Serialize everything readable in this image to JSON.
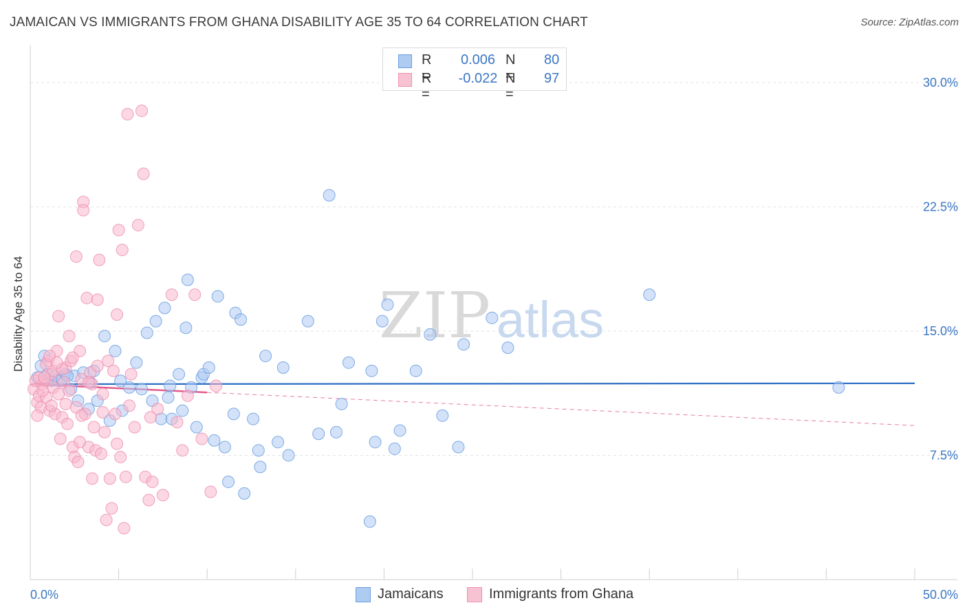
{
  "title": "JAMAICAN VS IMMIGRANTS FROM GHANA DISABILITY AGE 35 TO 64 CORRELATION CHART",
  "source": "Source: ZipAtlas.com",
  "watermark": {
    "zip": "ZIP",
    "atlas": "atlas"
  },
  "legend_top": [
    {
      "r_label": "R =",
      "r_value": "0.006",
      "n_label": "N =",
      "n_value": "80",
      "color": "#aecbf2"
    },
    {
      "r_label": "R =",
      "r_value": "-0.022",
      "n_label": "N =",
      "n_value": "97",
      "color": "#f7b8cc"
    }
  ],
  "legend_bottom": [
    {
      "label": "Jamaicans",
      "color": "#aecbf2"
    },
    {
      "label": "Immigrants from Ghana",
      "color": "#f7b8cc"
    }
  ],
  "chart_data": {
    "type": "scatter",
    "title": "JAMAICAN VS IMMIGRANTS FROM GHANA DISABILITY AGE 35 TO 64 CORRELATION CHART",
    "xlabel": "",
    "ylabel": "Disability Age 35 to 64",
    "xlim": [
      0,
      50
    ],
    "ylim": [
      0,
      32
    ],
    "x_tick_labels": [
      "0.0%",
      "50.0%"
    ],
    "y_ticks": [
      7.5,
      15.0,
      22.5,
      30.0
    ],
    "y_tick_labels": [
      "7.5%",
      "15.0%",
      "22.5%",
      "30.0%"
    ],
    "grid": true,
    "series": [
      {
        "name": "Jamaicans",
        "color": "#6a9ee0",
        "fill": "#aecbf2",
        "trend": {
          "x": [
            0,
            50
          ],
          "y": [
            11.8,
            11.85
          ],
          "color": "#2b6cc4",
          "style": "solid"
        },
        "points": [
          [
            0.4,
            12.2
          ],
          [
            0.6,
            12.9
          ],
          [
            0.8,
            13.5
          ],
          [
            1.0,
            12.4
          ],
          [
            1.2,
            12.0
          ],
          [
            1.4,
            12.3
          ],
          [
            1.6,
            12.0
          ],
          [
            1.8,
            12.1
          ],
          [
            2.0,
            12.4
          ],
          [
            2.3,
            11.5
          ],
          [
            2.5,
            12.3
          ],
          [
            2.7,
            10.8
          ],
          [
            3.0,
            12.5
          ],
          [
            3.3,
            10.3
          ],
          [
            3.6,
            12.6
          ],
          [
            3.8,
            10.8
          ],
          [
            4.2,
            14.7
          ],
          [
            4.5,
            9.6
          ],
          [
            4.8,
            13.8
          ],
          [
            5.2,
            10.2
          ],
          [
            5.6,
            11.6
          ],
          [
            6.0,
            13.1
          ],
          [
            6.3,
            11.5
          ],
          [
            6.6,
            14.9
          ],
          [
            6.9,
            10.8
          ],
          [
            7.1,
            15.6
          ],
          [
            7.4,
            9.7
          ],
          [
            7.6,
            16.4
          ],
          [
            7.8,
            11.0
          ],
          [
            8.0,
            9.7
          ],
          [
            8.4,
            12.4
          ],
          [
            8.6,
            10.2
          ],
          [
            8.8,
            15.2
          ],
          [
            8.9,
            18.1
          ],
          [
            9.1,
            11.6
          ],
          [
            9.4,
            9.2
          ],
          [
            9.7,
            12.2
          ],
          [
            9.8,
            12.4
          ],
          [
            10.1,
            12.8
          ],
          [
            10.4,
            8.4
          ],
          [
            10.6,
            17.1
          ],
          [
            11.0,
            8.0
          ],
          [
            11.2,
            5.9
          ],
          [
            11.5,
            10.0
          ],
          [
            11.6,
            16.1
          ],
          [
            11.9,
            15.7
          ],
          [
            12.1,
            5.2
          ],
          [
            12.6,
            9.7
          ],
          [
            12.9,
            7.8
          ],
          [
            13.0,
            6.8
          ],
          [
            13.3,
            13.5
          ],
          [
            14.0,
            8.3
          ],
          [
            14.3,
            12.8
          ],
          [
            14.6,
            7.5
          ],
          [
            15.7,
            15.6
          ],
          [
            16.3,
            8.8
          ],
          [
            16.9,
            23.2
          ],
          [
            17.3,
            8.9
          ],
          [
            17.6,
            10.6
          ],
          [
            18.0,
            13.1
          ],
          [
            19.2,
            3.5
          ],
          [
            19.3,
            12.6
          ],
          [
            19.5,
            8.3
          ],
          [
            19.9,
            15.6
          ],
          [
            20.2,
            16.6
          ],
          [
            20.6,
            7.9
          ],
          [
            20.9,
            9.0
          ],
          [
            21.8,
            12.6
          ],
          [
            22.6,
            14.8
          ],
          [
            23.3,
            9.9
          ],
          [
            24.2,
            8.0
          ],
          [
            24.5,
            14.2
          ],
          [
            26.1,
            15.8
          ],
          [
            27.0,
            14.0
          ],
          [
            35.0,
            17.2
          ],
          [
            45.7,
            11.6
          ],
          [
            3.4,
            11.9
          ],
          [
            5.1,
            12.0
          ],
          [
            7.9,
            11.7
          ],
          [
            2.1,
            12.3
          ]
        ]
      },
      {
        "name": "Immigrants from Ghana",
        "color": "#ef8fb1",
        "fill": "#f7b8cc",
        "trend": {
          "x": [
            0,
            10
          ],
          "y": [
            11.8,
            11.3
          ],
          "color": "#e15a8c",
          "style": "solid"
        },
        "trend_extended": {
          "x": [
            10,
            50
          ],
          "y": [
            11.3,
            9.3
          ],
          "color": "#e87ba3",
          "style": "dashed"
        },
        "points": [
          [
            0.2,
            11.5
          ],
          [
            0.3,
            12.0
          ],
          [
            0.4,
            10.7
          ],
          [
            0.5,
            11.1
          ],
          [
            0.6,
            10.4
          ],
          [
            0.7,
            11.8
          ],
          [
            0.8,
            12.0
          ],
          [
            0.9,
            11.0
          ],
          [
            1.0,
            13.2
          ],
          [
            1.1,
            10.2
          ],
          [
            1.2,
            12.4
          ],
          [
            1.3,
            11.6
          ],
          [
            1.4,
            10.0
          ],
          [
            1.5,
            13.8
          ],
          [
            1.6,
            15.9
          ],
          [
            1.7,
            8.5
          ],
          [
            1.8,
            9.8
          ],
          [
            1.9,
            11.9
          ],
          [
            2.0,
            12.8
          ],
          [
            2.1,
            9.4
          ],
          [
            2.2,
            14.7
          ],
          [
            2.3,
            13.2
          ],
          [
            2.4,
            8.0
          ],
          [
            2.5,
            7.4
          ],
          [
            2.6,
            19.5
          ],
          [
            2.7,
            7.1
          ],
          [
            2.8,
            13.8
          ],
          [
            2.9,
            12.1
          ],
          [
            3.0,
            22.8
          ],
          [
            3.0,
            22.3
          ],
          [
            3.1,
            10.0
          ],
          [
            3.2,
            17.0
          ],
          [
            3.3,
            8.0
          ],
          [
            3.4,
            12.5
          ],
          [
            3.5,
            11.8
          ],
          [
            3.6,
            9.2
          ],
          [
            3.7,
            7.8
          ],
          [
            3.8,
            16.9
          ],
          [
            3.9,
            19.3
          ],
          [
            4.0,
            7.6
          ],
          [
            4.1,
            11.2
          ],
          [
            4.2,
            8.9
          ],
          [
            4.3,
            3.6
          ],
          [
            4.4,
            13.2
          ],
          [
            4.5,
            6.1
          ],
          [
            4.6,
            4.3
          ],
          [
            4.7,
            12.6
          ],
          [
            4.8,
            10.0
          ],
          [
            4.9,
            16.0
          ],
          [
            5.0,
            21.1
          ],
          [
            5.1,
            7.4
          ],
          [
            5.2,
            19.9
          ],
          [
            5.3,
            3.1
          ],
          [
            5.4,
            6.2
          ],
          [
            5.5,
            28.1
          ],
          [
            5.7,
            12.4
          ],
          [
            5.9,
            9.2
          ],
          [
            6.1,
            21.4
          ],
          [
            6.3,
            28.3
          ],
          [
            6.4,
            24.5
          ],
          [
            6.5,
            6.2
          ],
          [
            6.7,
            4.8
          ],
          [
            6.9,
            5.9
          ],
          [
            7.2,
            10.3
          ],
          [
            7.5,
            5.1
          ],
          [
            8.0,
            17.2
          ],
          [
            8.3,
            9.5
          ],
          [
            8.6,
            7.8
          ],
          [
            8.9,
            11.1
          ],
          [
            9.3,
            17.2
          ],
          [
            9.7,
            8.5
          ],
          [
            10.2,
            5.3
          ],
          [
            10.5,
            11.7
          ],
          [
            1.3,
            12.6
          ],
          [
            2.2,
            11.4
          ],
          [
            2.6,
            10.4
          ],
          [
            3.8,
            12.9
          ],
          [
            0.9,
            13.0
          ],
          [
            1.6,
            11.2
          ],
          [
            4.1,
            10.1
          ],
          [
            0.5,
            12.2
          ],
          [
            1.1,
            13.5
          ],
          [
            2.0,
            10.6
          ],
          [
            2.9,
            9.9
          ],
          [
            3.3,
            11.9
          ],
          [
            5.6,
            10.5
          ],
          [
            6.8,
            9.8
          ],
          [
            0.7,
            11.4
          ],
          [
            1.8,
            12.7
          ],
          [
            2.4,
            13.4
          ],
          [
            3.5,
            6.1
          ],
          [
            4.9,
            8.2
          ],
          [
            1.2,
            10.5
          ],
          [
            0.8,
            12.2
          ],
          [
            1.5,
            13.1
          ],
          [
            2.8,
            8.3
          ],
          [
            0.4,
            9.9
          ]
        ]
      }
    ]
  }
}
